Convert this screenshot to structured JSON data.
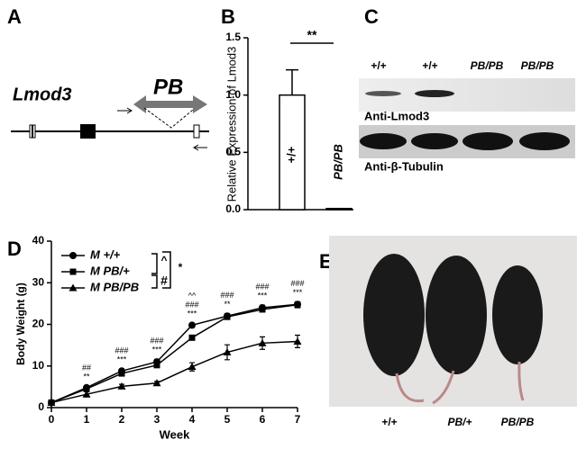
{
  "panel_a": {
    "label": "A",
    "gene": "Lmod3",
    "insert": "PB"
  },
  "chart_data": [
    {
      "type": "bar",
      "panel_label": "B",
      "ylabel": "Relative Expression of Lmod3",
      "categories": [
        "+/+",
        "PB/PB"
      ],
      "values": [
        1.0,
        0.01
      ],
      "errors": [
        0.22,
        0.0
      ],
      "color": "#ffffff",
      "ylim": [
        0,
        1.5
      ],
      "yticks": [
        {
          "value": 0,
          "label": "0.0"
        },
        {
          "value": 0.5,
          "label": "0.5"
        },
        {
          "value": 1,
          "label": "1.0"
        },
        {
          "value": 1.5,
          "label": "1.5"
        }
      ],
      "significance": "**"
    },
    {
      "type": "line",
      "panel_label": "D",
      "xlabel": "Week",
      "ylabel": "Body Weight (g)",
      "x": [
        0,
        1,
        2,
        3,
        4,
        5,
        6,
        7
      ],
      "xlim": [
        0,
        7
      ],
      "xticks": [
        0,
        1,
        2,
        3,
        4,
        5,
        6,
        7
      ],
      "ylim": [
        0,
        40
      ],
      "yticks": [
        0,
        10,
        20,
        30,
        40
      ],
      "series": [
        {
          "name": "M +/+",
          "color": "#000000",
          "marker": "circle",
          "values": [
            1.2,
            4.8,
            8.8,
            11,
            19.8,
            22,
            24,
            24.8
          ],
          "errors": [
            0.3,
            0.4,
            0.5,
            0.6,
            0.5,
            0.6,
            0.6,
            0.6
          ]
        },
        {
          "name": "M PB/+",
          "color": "#000000",
          "marker": "square",
          "values": [
            1.2,
            4.5,
            8.2,
            10.2,
            16.8,
            21.8,
            23.6,
            24.7
          ],
          "errors": [
            0.3,
            0.4,
            0.5,
            0.5,
            0.5,
            0.5,
            0.6,
            0.7
          ]
        },
        {
          "name": "M PB/PB",
          "color": "#000000",
          "marker": "triangle",
          "values": [
            1.2,
            3.2,
            5.1,
            5.9,
            9.8,
            13.3,
            15.5,
            15.9
          ],
          "errors": [
            0.3,
            0.6,
            0.5,
            0.4,
            1.0,
            1.8,
            1.5,
            1.5
          ]
        }
      ],
      "legend_brackets": [
        "^",
        "#",
        "*"
      ],
      "annotations": [
        {
          "x": 1,
          "lines": [
            "##",
            "**"
          ]
        },
        {
          "x": 2,
          "lines": [
            "###",
            "***"
          ]
        },
        {
          "x": 3,
          "lines": [
            "###",
            "***"
          ]
        },
        {
          "x": 4,
          "lines": [
            "^^",
            "###",
            "***"
          ]
        },
        {
          "x": 5,
          "lines": [
            "###",
            "**"
          ]
        },
        {
          "x": 6,
          "lines": [
            "###",
            "***"
          ]
        },
        {
          "x": 7,
          "lines": [
            "###",
            "***"
          ]
        }
      ]
    }
  ],
  "panel_c": {
    "label": "C",
    "lanes": [
      "+/+",
      "+/+",
      "PB/PB",
      "PB/PB"
    ],
    "blots": [
      "Anti-Lmod3",
      "Anti-β-Tubulin"
    ]
  },
  "panel_e": {
    "label": "E",
    "genotypes": [
      "+/+",
      "PB/+",
      "PB/PB"
    ]
  }
}
